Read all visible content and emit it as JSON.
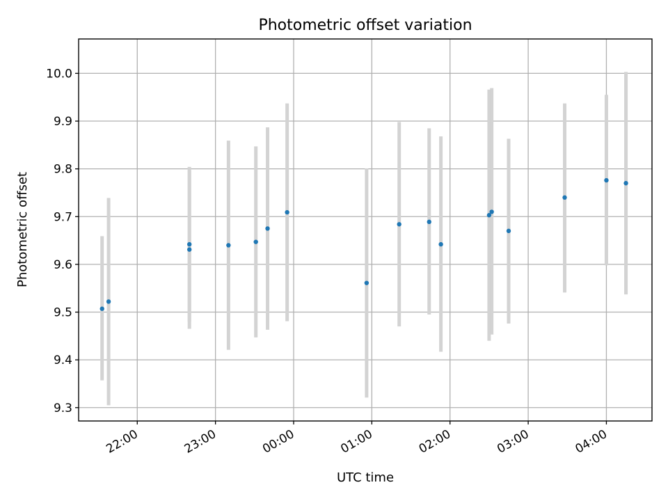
{
  "chart_data": {
    "type": "scatter",
    "title": "Photometric offset variation",
    "xlabel": "UTC time",
    "ylabel": "Photometric offset",
    "x_ticks": [
      {
        "t": "2023-01-01T22:00",
        "label": "22:00"
      },
      {
        "t": "2023-01-01T23:00",
        "label": "23:00"
      },
      {
        "t": "2023-01-02T00:00",
        "label": "00:00"
      },
      {
        "t": "2023-01-02T01:00",
        "label": "01:00"
      },
      {
        "t": "2023-01-02T02:00",
        "label": "02:00"
      },
      {
        "t": "2023-01-02T03:00",
        "label": "03:00"
      },
      {
        "t": "2023-01-02T04:00",
        "label": "04:00"
      }
    ],
    "xlim": [
      "2023-01-01T21:15",
      "2023-01-02T04:35"
    ],
    "y_ticks": [
      9.3,
      9.4,
      9.5,
      9.6,
      9.7,
      9.8,
      9.9,
      10.0
    ],
    "y_tick_labels": [
      "9.3",
      "9.4",
      "9.5",
      "9.6",
      "9.7",
      "9.8",
      "9.9",
      "10.0"
    ],
    "ylim": [
      9.272,
      10.072
    ],
    "grid": true,
    "point_color": "#1f77b4",
    "errorbar_color": "#d3d3d3",
    "points": [
      {
        "x": "2023-01-01T21:33",
        "y": 9.507,
        "lo": 9.357,
        "hi": 9.659
      },
      {
        "x": "2023-01-01T21:38",
        "y": 9.522,
        "lo": 9.305,
        "hi": 9.739
      },
      {
        "x": "2023-01-01T22:40",
        "y": 9.631,
        "lo": 9.465,
        "hi": 9.797
      },
      {
        "x": "2023-01-01T22:40",
        "y": 9.642,
        "lo": 9.48,
        "hi": 9.804
      },
      {
        "x": "2023-01-01T23:10",
        "y": 9.64,
        "lo": 9.421,
        "hi": 9.859
      },
      {
        "x": "2023-01-01T23:31",
        "y": 9.647,
        "lo": 9.447,
        "hi": 9.847
      },
      {
        "x": "2023-01-01T23:40",
        "y": 9.675,
        "lo": 9.463,
        "hi": 9.887
      },
      {
        "x": "2023-01-01T23:55",
        "y": 9.709,
        "lo": 9.481,
        "hi": 9.937
      },
      {
        "x": "2023-01-02T00:56",
        "y": 9.561,
        "lo": 9.321,
        "hi": 9.801
      },
      {
        "x": "2023-01-02T01:21",
        "y": 9.684,
        "lo": 9.47,
        "hi": 9.898
      },
      {
        "x": "2023-01-02T01:44",
        "y": 9.689,
        "lo": 9.495,
        "hi": 9.885
      },
      {
        "x": "2023-01-02T01:53",
        "y": 9.642,
        "lo": 9.417,
        "hi": 9.868
      },
      {
        "x": "2023-01-02T02:30",
        "y": 9.703,
        "lo": 9.44,
        "hi": 9.966
      },
      {
        "x": "2023-01-02T02:32",
        "y": 9.71,
        "lo": 9.453,
        "hi": 9.969
      },
      {
        "x": "2023-01-02T02:45",
        "y": 9.67,
        "lo": 9.476,
        "hi": 9.863
      },
      {
        "x": "2023-01-02T03:28",
        "y": 9.74,
        "lo": 9.541,
        "hi": 9.937
      },
      {
        "x": "2023-01-02T04:00",
        "y": 9.776,
        "lo": 9.598,
        "hi": 9.955
      },
      {
        "x": "2023-01-02T04:15",
        "y": 9.77,
        "lo": 9.537,
        "hi": 10.003
      }
    ]
  }
}
